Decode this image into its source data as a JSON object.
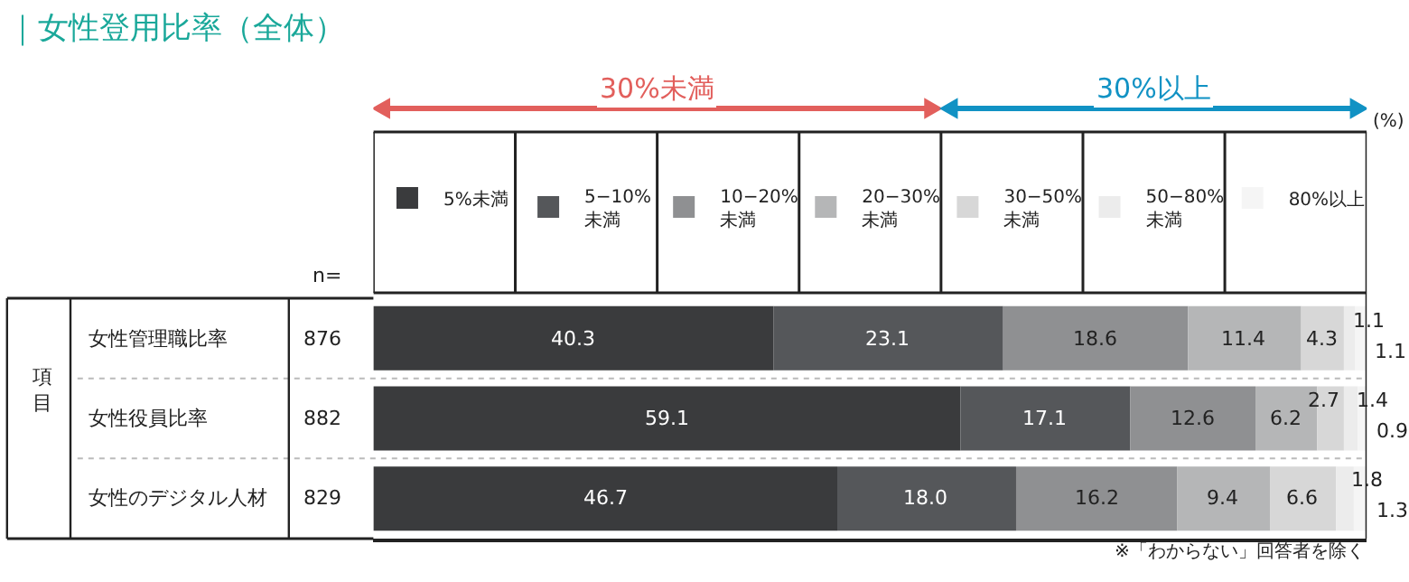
{
  "chart_data": {
    "type": "bar",
    "orientation": "horizontal",
    "stacked": true,
    "title": "｜女性登用比率（全体）",
    "categories": [
      "女性管理職比率",
      "女性役員比率",
      "女性のデジタル人材"
    ],
    "series": [
      {
        "name": "5%未満",
        "color": "#3a3b3d",
        "values": [
          40.3,
          59.1,
          46.7
        ],
        "value_labels": [
          "40.3",
          "59.1",
          "46.7"
        ]
      },
      {
        "name": "5−10%未満",
        "color": "#55575a",
        "values": [
          23.1,
          17.1,
          18.0
        ],
        "value_labels": [
          "23.1",
          "17.1",
          "18.0"
        ]
      },
      {
        "name": "10−20%未満",
        "color": "#8f9092",
        "values": [
          18.6,
          12.6,
          16.2
        ],
        "value_labels": [
          "18.6",
          "12.6",
          "16.2"
        ]
      },
      {
        "name": "20−30%未満",
        "color": "#b5b6b7",
        "values": [
          11.4,
          6.2,
          9.4
        ],
        "value_labels": [
          "11.4",
          "6.2",
          "9.4"
        ]
      },
      {
        "name": "30−50%未満",
        "color": "#d7d7d7",
        "values": [
          4.3,
          2.7,
          6.6
        ],
        "value_labels": [
          "4.3",
          "2.7",
          "6.6"
        ]
      },
      {
        "name": "50−80%未満",
        "color": "#ececec",
        "values": [
          1.1,
          1.4,
          1.8
        ],
        "value_labels": [
          "1.1",
          "1.4",
          "1.8"
        ]
      },
      {
        "name": "80%以上",
        "color": "#f5f5f5",
        "values": [
          1.1,
          0.9,
          1.3
        ],
        "value_labels": [
          "1.1",
          "0.9",
          "1.3"
        ]
      }
    ],
    "xlim": [
      0,
      100
    ],
    "tick_labels": false,
    "legend": "top",
    "annotations": [
      "30%未満",
      "30%以上",
      "(%)",
      "n=",
      "項目",
      "876",
      "882",
      "829",
      "※「わからない」回答者を除く"
    ]
  }
}
